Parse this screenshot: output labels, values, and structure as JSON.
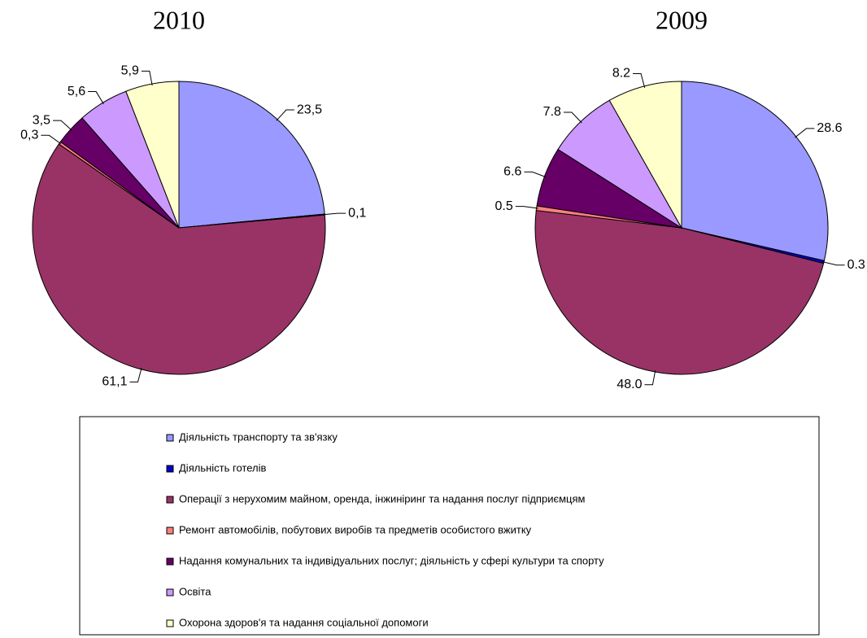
{
  "chart_data": [
    {
      "type": "pie",
      "title": "2010",
      "categories": [
        "Діяльність транспорту та зв'язку",
        "Діяльність готелів",
        "Операції з нерухомим майном, оренда, інжиніринг та надання послуг підприємцям",
        "Ремонт автомобілів, побутових виробів та предметів особистого вжитку",
        "Надання комунальних та індивідуальних послуг; діяльність у сфері культури та спорту",
        "Освіта",
        "Охорона здоров'я та надання соціальної допомоги"
      ],
      "values": [
        23.5,
        0.1,
        61.1,
        0.3,
        3.5,
        5.6,
        5.9
      ],
      "value_labels": [
        "23,5",
        "0,1",
        "61,1",
        "0,3",
        "3,5",
        "5,6",
        "5,9"
      ],
      "colors": [
        "#9999ff",
        "#0000cc",
        "#993366",
        "#ff8080",
        "#660066",
        "#cc99ff",
        "#ffffcc"
      ]
    },
    {
      "type": "pie",
      "title": "2009",
      "values": [
        28.6,
        0.3,
        48.0,
        0.5,
        6.6,
        7.8,
        8.2
      ],
      "value_labels": [
        "28.6",
        "0.3",
        "48.0",
        "0.5",
        "6.6",
        "7.8",
        "8.2"
      ],
      "colors": [
        "#9999ff",
        "#0000cc",
        "#993366",
        "#ff8080",
        "#660066",
        "#cc99ff",
        "#ffffcc"
      ]
    }
  ]
}
